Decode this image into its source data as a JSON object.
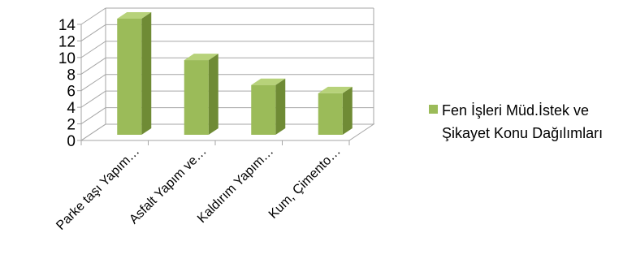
{
  "chart_data": {
    "type": "bar",
    "categories": [
      "Parke taşı Yapım…",
      "Asfalt Yapım ve…",
      "Kaldırım Yapım…",
      "Kum, Çimento…"
    ],
    "series": [
      {
        "name": "Fen İşleri Müd.İstek ve Şikayet Konu Dağılımları",
        "values": [
          14,
          9,
          6,
          5
        ]
      }
    ],
    "y_ticks": [
      "0",
      "2",
      "4",
      "6",
      "8",
      "10",
      "12",
      "14"
    ],
    "ylim": [
      0,
      14
    ],
    "grid": true,
    "legend_position": "right",
    "style_3d": true,
    "colors": {
      "bar_front": "#9BBB59",
      "bar_top": "#B7D27A",
      "bar_side": "#6F8B35",
      "grid": "#A6A6A6"
    }
  },
  "legend": {
    "label": "Fen İşleri Müd.İstek ve Şikayet Konu Dağılımları"
  }
}
